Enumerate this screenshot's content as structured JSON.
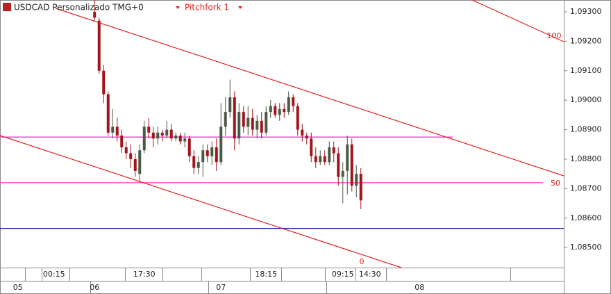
{
  "chart_data": {
    "type": "candlestick",
    "title": "USDCAD Personalizado TMG+0",
    "indicator": "Pitchfork 1",
    "level_labels": [
      "100",
      "50",
      "0"
    ],
    "categories": [
      null,
      null,
      null,
      null,
      null,
      null,
      null,
      null,
      null,
      null,
      null,
      "00:15",
      null,
      null,
      null,
      null,
      null,
      null,
      null,
      null,
      null,
      null,
      null,
      null,
      null,
      null,
      null,
      null,
      null,
      null,
      null,
      "17:30",
      null,
      null,
      null,
      null,
      null,
      null,
      null,
      null,
      null,
      null,
      null,
      null,
      null,
      null,
      null,
      null,
      null,
      null,
      null,
      null,
      null,
      null,
      null,
      null,
      null,
      null,
      "18:15",
      null,
      null,
      null,
      null,
      null,
      null,
      null,
      null,
      null,
      null,
      null,
      null,
      null,
      null,
      null,
      null,
      "09:15",
      null,
      null,
      null,
      null,
      null,
      "14:30",
      null,
      null,
      null,
      null,
      null,
      null,
      null,
      null,
      null,
      null,
      null
    ],
    "days": [
      null,
      null,
      null,
      "05",
      null,
      null,
      null,
      null,
      null,
      null,
      null,
      null,
      null,
      null,
      null,
      null,
      null,
      null,
      null,
      null,
      "06",
      null,
      null,
      null,
      null,
      null,
      null,
      null,
      null,
      null,
      null,
      null,
      null,
      null,
      null,
      null,
      null,
      null,
      null,
      null,
      null,
      null,
      null,
      null,
      null,
      null,
      null,
      null,
      "07",
      null,
      null,
      null,
      null,
      null,
      null,
      null,
      null,
      null,
      null,
      null,
      null,
      null,
      null,
      null,
      null,
      null,
      null,
      null,
      null,
      null,
      null,
      null,
      null,
      null,
      null,
      null,
      null,
      null,
      null,
      null,
      null,
      null,
      null,
      null,
      null,
      null,
      null,
      null,
      null,
      null,
      null,
      null,
      "08"
    ],
    "open": [
      null,
      null,
      null,
      null,
      null,
      null,
      null,
      null,
      null,
      null,
      null,
      null,
      null,
      null,
      null,
      null,
      null,
      null,
      null,
      null,
      1.093,
      1.0927,
      1.091,
      1.0902,
      1.0889,
      1.0891,
      1.0888,
      1.0884,
      1.0882,
      1.088,
      1.0875,
      1.0883,
      1.0891,
      1.0889,
      1.0887,
      1.0889,
      1.0888,
      1.089,
      1.0887,
      1.0888,
      1.0886,
      1.0887,
      1.0881,
      1.0877,
      1.0879,
      1.0883,
      1.0881,
      1.0884,
      1.0879,
      1.0891,
      1.0896,
      1.0901,
      1.0887,
      1.0896,
      1.0891,
      1.0894,
      1.089,
      1.0893,
      1.0889,
      1.0896,
      1.0898,
      1.0895,
      1.0897,
      1.0896,
      1.0901,
      1.0898,
      1.089,
      1.0888,
      1.0887,
      1.0881,
      1.0879,
      1.0881,
      1.0879,
      1.0884,
      1.0882,
      1.0874,
      1.0876,
      1.0885,
      1.0871,
      1.0875,
      null,
      null,
      null,
      null,
      null,
      null,
      null,
      null,
      null,
      null,
      null,
      null,
      null
    ],
    "high": [
      null,
      null,
      null,
      null,
      null,
      null,
      null,
      null,
      null,
      null,
      null,
      null,
      null,
      null,
      null,
      null,
      null,
      null,
      null,
      null,
      1.0934,
      1.0928,
      1.0912,
      1.0903,
      1.0897,
      1.0894,
      1.089,
      1.0886,
      1.0885,
      1.0882,
      1.0885,
      1.0893,
      1.0894,
      1.0891,
      1.0891,
      1.089,
      1.0893,
      1.0892,
      1.0889,
      1.0889,
      1.0889,
      1.0888,
      1.0883,
      1.0881,
      1.0885,
      1.0885,
      1.0886,
      1.0887,
      1.0899,
      1.0901,
      1.0907,
      1.0903,
      1.0899,
      1.0898,
      1.0898,
      1.0897,
      1.0895,
      1.0896,
      1.0898,
      1.09,
      1.0899,
      1.0899,
      1.0899,
      1.0903,
      1.0902,
      1.0899,
      1.0892,
      1.0889,
      1.0889,
      1.0884,
      1.0883,
      1.0883,
      1.0886,
      1.0886,
      1.0884,
      1.0879,
      1.0888,
      1.0887,
      1.0878,
      1.0877,
      null,
      null,
      null,
      null,
      null,
      null,
      null,
      null,
      null,
      null,
      null,
      null,
      null
    ],
    "low": [
      null,
      null,
      null,
      null,
      null,
      null,
      null,
      null,
      null,
      null,
      null,
      null,
      null,
      null,
      null,
      null,
      null,
      null,
      null,
      null,
      1.0927,
      1.0909,
      1.0899,
      1.0888,
      1.0887,
      1.0886,
      1.0882,
      1.088,
      1.0877,
      1.0874,
      1.0872,
      1.0882,
      1.0887,
      1.0884,
      1.0885,
      1.0886,
      1.0887,
      1.0886,
      1.0886,
      1.0885,
      1.0884,
      1.0879,
      1.0875,
      1.0875,
      1.0874,
      1.0879,
      1.0878,
      1.0876,
      1.0878,
      1.0888,
      1.0894,
      1.0883,
      1.0885,
      1.0889,
      1.0888,
      1.0888,
      1.0887,
      1.0887,
      1.0888,
      1.0894,
      1.0894,
      1.0893,
      1.0894,
      1.0895,
      1.0896,
      1.0888,
      1.0886,
      1.0885,
      1.0879,
      1.0877,
      1.0878,
      1.0878,
      1.0878,
      1.0879,
      1.0871,
      1.0865,
      1.0868,
      1.0869,
      1.0867,
      1.0863,
      null,
      null,
      null,
      null,
      null,
      null,
      null,
      null,
      null,
      null,
      null,
      null,
      null
    ],
    "close": [
      null,
      null,
      null,
      null,
      null,
      null,
      null,
      null,
      null,
      null,
      null,
      null,
      null,
      null,
      null,
      null,
      null,
      null,
      null,
      null,
      1.0928,
      1.091,
      1.0902,
      1.0889,
      1.0891,
      1.0888,
      1.0884,
      1.0882,
      1.088,
      1.0876,
      1.0883,
      1.0891,
      1.0889,
      1.0887,
      1.0889,
      1.0888,
      1.089,
      1.0887,
      1.0888,
      1.0886,
      1.0887,
      1.0881,
      1.0877,
      1.0879,
      1.0883,
      1.0881,
      1.0884,
      1.0879,
      1.0891,
      1.0896,
      1.0901,
      1.0887,
      1.0896,
      1.0891,
      1.0894,
      1.089,
      1.0893,
      1.0889,
      1.0896,
      1.0898,
      1.0895,
      1.0897,
      1.0896,
      1.0901,
      1.0898,
      1.089,
      1.0888,
      1.0887,
      1.0881,
      1.0879,
      1.0881,
      1.0879,
      1.0884,
      1.0882,
      1.0874,
      1.0876,
      1.0885,
      1.0871,
      1.0875,
      1.0866,
      null,
      null,
      null,
      null,
      null,
      null,
      null,
      null,
      null,
      null,
      null,
      null,
      null
    ],
    "up_color": "#4b5a47",
    "down_color": "#a3141a",
    "hlines": [
      {
        "value": 1.08875,
        "color": "#ff33cc"
      },
      {
        "value": 1.0872,
        "color": "#ff33cc"
      },
      {
        "value": 1.08565,
        "color": "#1a1aa8"
      }
    ],
    "ylim": [
      1.08432,
      1.0934
    ],
    "yticks": [
      {
        "value": 1.093,
        "label": "1,09300"
      },
      {
        "value": 1.092,
        "label": "1,09200"
      },
      {
        "value": 1.091,
        "label": "1,09100"
      },
      {
        "value": 1.09,
        "label": "1,09000"
      },
      {
        "value": 1.089,
        "label": "1,08900"
      },
      {
        "value": 1.088,
        "label": "1,08800"
      },
      {
        "value": 1.087,
        "label": "1,08700"
      },
      {
        "value": 1.086,
        "label": "1,08600"
      },
      {
        "value": 1.085,
        "label": "1,08500"
      }
    ]
  }
}
